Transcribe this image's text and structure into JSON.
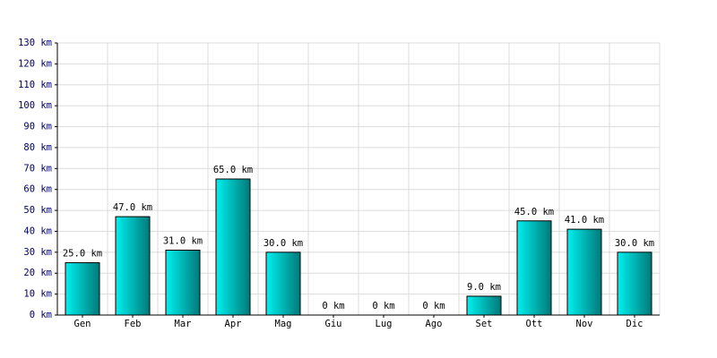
{
  "chart_data": {
    "type": "bar",
    "categories": [
      "Gen",
      "Feb",
      "Mar",
      "Apr",
      "Mag",
      "Giu",
      "Lug",
      "Ago",
      "Set",
      "Ott",
      "Nov",
      "Dic"
    ],
    "values": [
      25,
      47,
      31,
      65,
      30,
      0,
      0,
      0,
      9,
      45,
      41,
      30
    ],
    "value_labels": [
      "25.0 km",
      "47.0 km",
      "31.0 km",
      "65.0 km",
      "30.0 km",
      "0 km",
      "0 km",
      "0 km",
      "9.0 km",
      "45.0 km",
      "41.0 km",
      "30.0 km"
    ],
    "color": "#00f0f0",
    "ylim": [
      0,
      130
    ],
    "yticks": [
      {
        "value": 0,
        "label": "0 km"
      },
      {
        "value": 10,
        "label": "10 km"
      },
      {
        "value": 20,
        "label": "20 km"
      },
      {
        "value": 30,
        "label": "30 km"
      },
      {
        "value": 40,
        "label": "40 km"
      },
      {
        "value": 50,
        "label": "50 km"
      },
      {
        "value": 60,
        "label": "60 km"
      },
      {
        "value": 70,
        "label": "70 km"
      },
      {
        "value": 80,
        "label": "80 km"
      },
      {
        "value": 90,
        "label": "90 km"
      },
      {
        "value": 100,
        "label": "100 km"
      },
      {
        "value": 110,
        "label": "110 km"
      },
      {
        "value": 120,
        "label": "120 km"
      },
      {
        "value": 130,
        "label": "130 km"
      }
    ],
    "grid": true
  }
}
